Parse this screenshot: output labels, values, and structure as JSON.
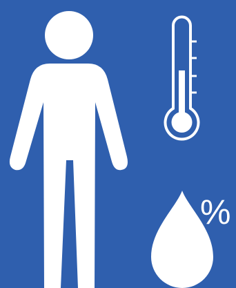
{
  "colors": {
    "background": "#2f5fae",
    "foreground": "#ffffff"
  },
  "icons": {
    "person": "person-icon",
    "thermometer": "thermometer-icon",
    "humidity": "water-drop-icon"
  },
  "humidity": {
    "symbol": "%"
  }
}
